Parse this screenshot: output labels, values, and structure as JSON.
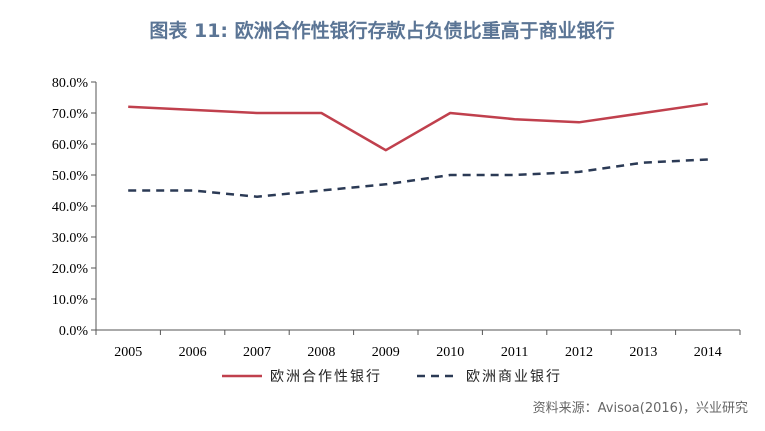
{
  "chart_data": {
    "type": "line",
    "title": "图表 11: 欧洲合作性银行存款占负债比重高于商业银行",
    "categories": [
      "2005",
      "2006",
      "2007",
      "2008",
      "2009",
      "2010",
      "2011",
      "2012",
      "2013",
      "2014"
    ],
    "series": [
      {
        "name": "欧洲合作性银行",
        "values": [
          72,
          71,
          70,
          70,
          58,
          70,
          68,
          67,
          70,
          73
        ],
        "color": "#c0404d",
        "line_style": "solid"
      },
      {
        "name": "欧洲商业银行",
        "values": [
          45,
          45,
          43,
          45,
          47,
          50,
          50,
          51,
          54,
          55
        ],
        "color": "#2b3a55",
        "line_style": "dashed"
      }
    ],
    "ylim": [
      0,
      80
    ],
    "yticks": [
      0,
      10,
      20,
      30,
      40,
      50,
      60,
      70,
      80
    ],
    "ytick_labels": [
      "0.0%",
      "10.0%",
      "20.0%",
      "30.0%",
      "40.0%",
      "50.0%",
      "60.0%",
      "70.0%",
      "80.0%"
    ],
    "grid": false,
    "legend_position": "bottom"
  },
  "source": "资料来源：Avisoa(2016)，兴业研究",
  "colors": {
    "title": "#5b7595",
    "axis": "#555555",
    "source": "#666666"
  }
}
